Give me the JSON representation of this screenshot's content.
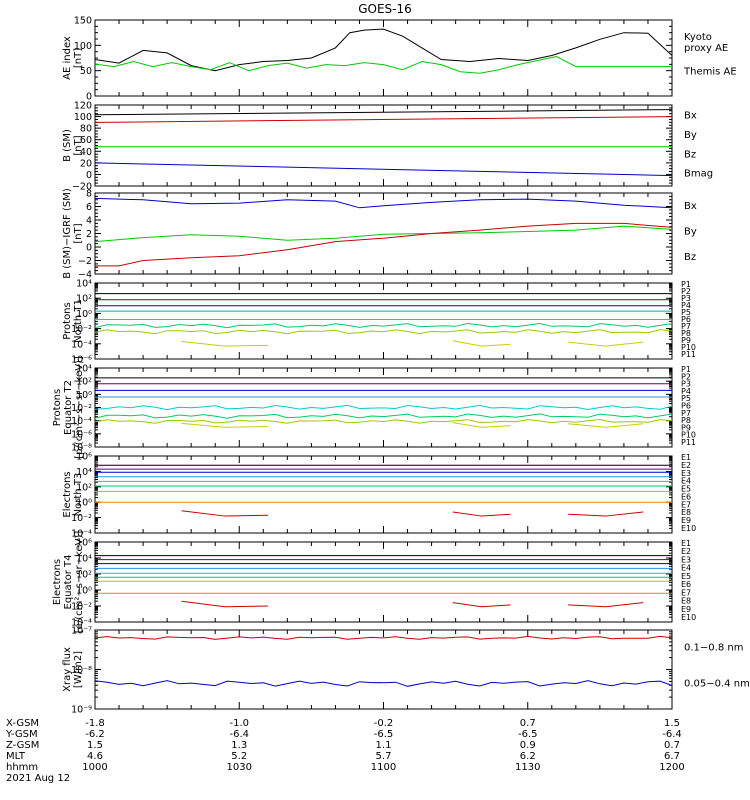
{
  "chart_data": {
    "type": "line",
    "title": "GOES-16",
    "time_axis": {
      "unit": "hhmm",
      "start": "1000",
      "end": "1200",
      "rows": [
        {
          "label": "X-GSM",
          "values": [
            "-1.8",
            "-1.0",
            "-0.2",
            "0.7",
            "1.5"
          ]
        },
        {
          "label": "Y-GSM",
          "values": [
            "-6.2",
            "-6.4",
            "-6.5",
            "-6.5",
            "-6.4"
          ]
        },
        {
          "label": "Z-GSM",
          "values": [
            "1.5",
            "1.3",
            "1.1",
            "0.9",
            "0.7"
          ]
        },
        {
          "label": "MLT",
          "values": [
            "4.6",
            "5.2",
            "5.7",
            "6.2",
            "6.7"
          ]
        },
        {
          "label": "hhmm",
          "values": [
            "1000",
            "1030",
            "1100",
            "1130",
            "1200"
          ]
        }
      ],
      "date": "2021 Aug 12"
    },
    "panels": [
      {
        "id": "ae",
        "ylabel": "AE index\n[nT]",
        "scale": "linear",
        "ylim": [
          0,
          150
        ],
        "ticks": [
          "0",
          "50",
          "100",
          "150"
        ],
        "legend": [
          {
            "name": "Kyoto\nproxy AE",
            "color": "#00cc00"
          },
          {
            "name": "Themis AE",
            "color": "#000000"
          }
        ],
        "series": [
          {
            "name": "Themis AE",
            "color": "#000000",
            "x": [
              1000,
              1005,
              1010,
              1015,
              1020,
              1025,
              1030,
              1035,
              1040,
              1045,
              1050,
              1053,
              1056,
              1100,
              1104,
              1108,
              1112,
              1118,
              1124,
              1130,
              1135,
              1140,
              1145,
              1150,
              1155,
              1200
            ],
            "y": [
              72,
              65,
              90,
              85,
              60,
              50,
              62,
              68,
              70,
              75,
              95,
              125,
              130,
              132,
              118,
              95,
              72,
              68,
              74,
              70,
              80,
              95,
              112,
              125,
              124,
              80
            ]
          },
          {
            "name": "Kyoto proxy AE",
            "color": "#00cc00",
            "x": [
              1000,
              1004,
              1008,
              1012,
              1016,
              1020,
              1024,
              1028,
              1032,
              1036,
              1040,
              1044,
              1048,
              1052,
              1056,
              1100,
              1104,
              1108,
              1112,
              1116,
              1120,
              1124,
              1128,
              1132,
              1136,
              1140,
              1144,
              1148,
              1152,
              1156,
              1200
            ],
            "y": [
              63,
              58,
              68,
              58,
              66,
              58,
              52,
              66,
              50,
              60,
              65,
              55,
              62,
              60,
              66,
              62,
              52,
              68,
              62,
              48,
              45,
              52,
              62,
              70,
              78,
              58,
              58,
              58,
              58,
              58,
              58
            ]
          }
        ]
      },
      {
        "id": "b_sm",
        "ylabel": "B (SM)\n[nT]",
        "scale": "linear",
        "ylim": [
          -20,
          120
        ],
        "ticks": [
          "−20",
          "0",
          "20",
          "40",
          "60",
          "80",
          "100",
          "120"
        ],
        "legend": [
          {
            "name": "Bx",
            "color": "#0000cc"
          },
          {
            "name": "By",
            "color": "#00cc00"
          },
          {
            "name": "Bz",
            "color": "#cc0000"
          },
          {
            "name": "Bmag",
            "color": "#000000"
          }
        ],
        "series": [
          {
            "name": "Bmag",
            "color": "#000000",
            "x": [
              1000,
              1200
            ],
            "y": [
              103,
              112
            ]
          },
          {
            "name": "Bz",
            "color": "#cc0000",
            "x": [
              1000,
              1200
            ],
            "y": [
              90,
              100
            ]
          },
          {
            "name": "By",
            "color": "#00cc00",
            "x": [
              1000,
              1200
            ],
            "y": [
              48,
              48
            ]
          },
          {
            "name": "Bx",
            "color": "#0000cc",
            "x": [
              1000,
              1200
            ],
            "y": [
              20,
              -2
            ]
          }
        ]
      },
      {
        "id": "b_igrf",
        "ylabel": "B (SM)−IGRF (SM)\n[nT]",
        "scale": "linear",
        "ylim": [
          -4,
          8
        ],
        "ticks": [
          "−4",
          "−2",
          "0",
          "2",
          "4",
          "6",
          "8"
        ],
        "legend": [
          {
            "name": "Bx",
            "color": "#0000cc"
          },
          {
            "name": "By",
            "color": "#00cc00"
          },
          {
            "name": "Bz",
            "color": "#cc0000"
          }
        ],
        "series": [
          {
            "name": "Bx",
            "color": "#0000cc",
            "x": [
              1000,
              1010,
              1020,
              1030,
              1040,
              1050,
              1055,
              1100,
              1110,
              1120,
              1130,
              1140,
              1150,
              1200
            ],
            "y": [
              7.2,
              7.0,
              6.4,
              6.5,
              7.0,
              6.8,
              5.8,
              6.1,
              6.6,
              7.0,
              7.1,
              6.8,
              6.2,
              5.8
            ]
          },
          {
            "name": "By",
            "color": "#00cc00",
            "x": [
              1000,
              1010,
              1020,
              1030,
              1040,
              1050,
              1100,
              1110,
              1120,
              1130,
              1140,
              1150,
              1200
            ],
            "y": [
              0.8,
              1.4,
              1.8,
              1.6,
              1.0,
              1.3,
              1.9,
              2.0,
              2.1,
              2.3,
              2.5,
              3.1,
              2.6
            ]
          },
          {
            "name": "Bz",
            "color": "#cc0000",
            "x": [
              1000,
              1005,
              1010,
              1020,
              1030,
              1040,
              1050,
              1100,
              1110,
              1120,
              1130,
              1140,
              1150,
              1200
            ],
            "y": [
              -2.8,
              -2.8,
              -2.0,
              -1.6,
              -1.3,
              -0.4,
              0.8,
              1.3,
              2.0,
              2.5,
              3.1,
              3.5,
              3.5,
              2.9
            ]
          }
        ]
      },
      {
        "id": "protons_t1",
        "ylabel": "Protons\nNorth T1",
        "scale": "log",
        "ylim": [
          -6,
          4
        ],
        "ticks": [
          "10⁻⁶",
          "10⁻⁴",
          "10⁻²",
          "10⁰",
          "10²",
          "10⁴"
        ],
        "legend": [
          {
            "name": "P1",
            "color": "#000000"
          },
          {
            "name": "P2",
            "color": "#660066"
          },
          {
            "name": "P3",
            "color": "#0000cc"
          },
          {
            "name": "P4",
            "color": "#3388ee"
          },
          {
            "name": "P5",
            "color": "#00cccc"
          },
          {
            "name": "P6",
            "color": "#00cc66"
          },
          {
            "name": "P7",
            "color": "#99cc00"
          },
          {
            "name": "P8",
            "color": "#cccc00"
          },
          {
            "name": "P9",
            "color": "#ee8800"
          },
          {
            "name": "P10",
            "color": "#cc0000"
          },
          {
            "name": "P11",
            "color": "#880000"
          }
        ],
        "series": [
          {
            "name": "P1",
            "color": "#000000",
            "level": 2.6
          },
          {
            "name": "P2",
            "color": "#660066",
            "level": 1.8
          },
          {
            "name": "P3",
            "color": "#0000cc",
            "level": 1.0
          },
          {
            "name": "P4",
            "color": "#3388ee",
            "level": 0.3
          },
          {
            "name": "P5",
            "color": "#00cccc",
            "level": -0.8
          },
          {
            "name": "P6",
            "color": "#00cc66",
            "level": -1.6,
            "wiggle": 0.3
          },
          {
            "name": "P7",
            "color": "#99cc00",
            "level": -2.4,
            "wiggle": 0.3
          },
          {
            "name": "P8",
            "color": "#cccc00",
            "level": -3.9,
            "sparse": true
          }
        ]
      },
      {
        "id": "protons_t2",
        "ylabel": "Protons\nEquator T2\n[p/(cm²−s−sr−keV)]",
        "scale": "log",
        "ylim": [
          -8,
          4
        ],
        "ticks": [
          "10⁻⁸",
          "10⁻⁶",
          "10⁻⁴",
          "10⁻²",
          "10⁰",
          "10²",
          "10⁴"
        ],
        "legend": [
          {
            "name": "P1",
            "color": "#000000"
          },
          {
            "name": "P2",
            "color": "#660066"
          },
          {
            "name": "P3",
            "color": "#0000cc"
          },
          {
            "name": "P4",
            "color": "#3388ee"
          },
          {
            "name": "P5",
            "color": "#00cccc"
          },
          {
            "name": "P6",
            "color": "#00cc66"
          },
          {
            "name": "P7",
            "color": "#99cc00"
          },
          {
            "name": "P8",
            "color": "#cccc00"
          },
          {
            "name": "P9",
            "color": "#ee8800"
          },
          {
            "name": "P10",
            "color": "#cc0000"
          },
          {
            "name": "P11",
            "color": "#880000"
          }
        ],
        "series": [
          {
            "name": "P1",
            "color": "#000000",
            "level": 2.5
          },
          {
            "name": "P2",
            "color": "#660066",
            "level": 1.6
          },
          {
            "name": "P3",
            "color": "#0000cc",
            "level": 0.6
          },
          {
            "name": "P4",
            "color": "#3388ee",
            "level": -0.4
          },
          {
            "name": "P5",
            "color": "#00cccc",
            "level": -2.0,
            "wiggle": 0.35
          },
          {
            "name": "P6",
            "color": "#00cc66",
            "level": -3.3,
            "wiggle": 0.35
          },
          {
            "name": "P7",
            "color": "#99cc00",
            "level": -4.1,
            "wiggle": 0.3
          },
          {
            "name": "P8",
            "color": "#cccc00",
            "level": -4.6,
            "sparse": true
          }
        ]
      },
      {
        "id": "electrons_t3",
        "ylabel": "Electrons\nNorth T3",
        "scale": "log",
        "ylim": [
          -4,
          6
        ],
        "ticks": [
          "10⁻⁴",
          "10⁻²",
          "10⁰",
          "10²",
          "10⁴",
          "10⁶"
        ],
        "legend": [
          {
            "name": "E1",
            "color": "#000000"
          },
          {
            "name": "E2",
            "color": "#660066"
          },
          {
            "name": "E3",
            "color": "#0000cc"
          },
          {
            "name": "E4",
            "color": "#3388ee"
          },
          {
            "name": "E5",
            "color": "#00cccc"
          },
          {
            "name": "E6",
            "color": "#00cc66"
          },
          {
            "name": "E7",
            "color": "#99cc00"
          },
          {
            "name": "E8",
            "color": "#ee8800"
          },
          {
            "name": "E9",
            "color": "#cc0000"
          },
          {
            "name": "E10",
            "color": "#880000"
          }
        ],
        "series": [
          {
            "name": "E1",
            "color": "#000000",
            "level": 4.8
          },
          {
            "name": "E2",
            "color": "#660066",
            "level": 4.3
          },
          {
            "name": "E3",
            "color": "#0000cc",
            "level": 3.9
          },
          {
            "name": "E4",
            "color": "#3388ee",
            "level": 3.3
          },
          {
            "name": "E5",
            "color": "#00cccc",
            "level": 2.7
          },
          {
            "name": "E6",
            "color": "#00cc66",
            "level": 2.1
          },
          {
            "name": "E7",
            "color": "#99cc00",
            "level": 1.4
          },
          {
            "name": "E8",
            "color": "#ee8800",
            "level": 0.0
          },
          {
            "name": "E9",
            "color": "#cc0000",
            "level": -1.4,
            "sparse": true
          }
        ]
      },
      {
        "id": "electrons_t4",
        "ylabel": "Electrons\nEquator T4\n[e/(cm²−s−sr−keV)]",
        "scale": "log",
        "ylim": [
          -4,
          6
        ],
        "ticks": [
          "10⁻⁴",
          "10⁻²",
          "10⁰",
          "10²",
          "10⁴",
          "10⁶"
        ],
        "legend": [
          {
            "name": "E1",
            "color": "#000000"
          },
          {
            "name": "E2",
            "color": "#660066"
          },
          {
            "name": "E3",
            "color": "#0000cc"
          },
          {
            "name": "E4",
            "color": "#3388ee"
          },
          {
            "name": "E5",
            "color": "#00cccc"
          },
          {
            "name": "E6",
            "color": "#00cc66"
          },
          {
            "name": "E7",
            "color": "#99cc00"
          },
          {
            "name": "E8",
            "color": "#ee8800"
          },
          {
            "name": "E9",
            "color": "#cc0000"
          },
          {
            "name": "E10",
            "color": "#880000"
          }
        ],
        "series": [
          {
            "name": "E1",
            "color": "#000000",
            "level": 4.3
          },
          {
            "name": "E2",
            "color": "#660066",
            "level": 3.8
          },
          {
            "name": "E3",
            "color": "#0000cc",
            "level": 3.3
          },
          {
            "name": "E4",
            "color": "#3388ee",
            "level": 2.7
          },
          {
            "name": "E5",
            "color": "#00cccc",
            "level": 2.1
          },
          {
            "name": "E6",
            "color": "#00cc66",
            "level": 1.6
          },
          {
            "name": "E7",
            "color": "#99cc00",
            "level": 1.1
          },
          {
            "name": "E8",
            "color": "#ee8800",
            "level": -0.4
          },
          {
            "name": "E9",
            "color": "#cc0000",
            "level": -1.7,
            "sparse": true
          }
        ]
      },
      {
        "id": "xray",
        "ylabel": "Xray flux\n[W/m2]",
        "scale": "log",
        "ylim": [
          -9,
          -7
        ],
        "ticks": [
          "10⁻⁹",
          "10⁻⁸",
          "10⁻⁷"
        ],
        "legend": [
          {
            "name": "0.1−0.8 nm",
            "color": "#cc0000"
          },
          {
            "name": "0.05−0.4 nm",
            "color": "#0000cc"
          }
        ],
        "series": [
          {
            "name": "0.1−0.8 nm",
            "color": "#cc0000",
            "level": -7.2,
            "wiggle": 0.04
          },
          {
            "name": "0.05−0.4 nm",
            "color": "#0000cc",
            "level": -8.35,
            "wiggle": 0.08
          }
        ]
      }
    ]
  }
}
